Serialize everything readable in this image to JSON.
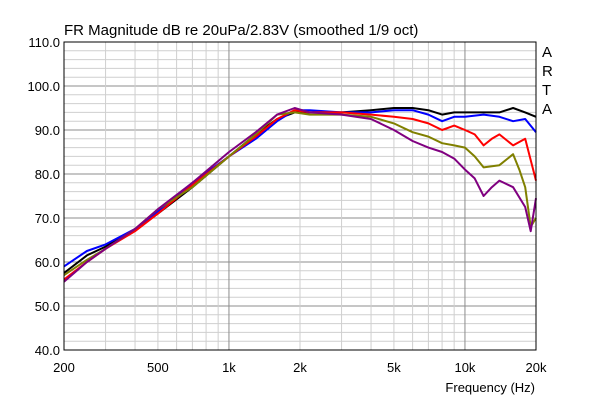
{
  "chart_data": {
    "type": "line",
    "title": "FR Magnitude dB re 20uPa/2.83V (smoothed 1/9 oct)",
    "xlabel": "Frequency (Hz)",
    "ylabel": "",
    "x_scale": "log",
    "xlim": [
      200,
      20000
    ],
    "ylim": [
      40,
      110
    ],
    "x_ticks": [
      200,
      500,
      1000,
      2000,
      5000,
      10000,
      20000
    ],
    "x_tick_labels": [
      "200",
      "500",
      "1k",
      "2k",
      "5k",
      "10k",
      "20k"
    ],
    "y_ticks": [
      40,
      50,
      60,
      70,
      80,
      90,
      100,
      110
    ],
    "y_tick_labels": [
      "40.0",
      "50.0",
      "60.0",
      "70.0",
      "80.0",
      "90.0",
      "100.0",
      "110.0"
    ],
    "grid": true,
    "watermark": "ARTA",
    "series": [
      {
        "color": "#000000",
        "x": [
          200,
          250,
          300,
          400,
          500,
          700,
          1000,
          1300,
          1600,
          1900,
          2200,
          3000,
          4000,
          5000,
          6000,
          7000,
          8000,
          9000,
          10000,
          12000,
          14000,
          16000,
          18000,
          20000
        ],
        "y": [
          57.5,
          61.5,
          63.5,
          67.5,
          71,
          77,
          84,
          89,
          92.5,
          94,
          94,
          94,
          94.5,
          95,
          95,
          94.5,
          93.5,
          94,
          94,
          94,
          94,
          95,
          94,
          93
        ]
      },
      {
        "color": "#0000ff",
        "x": [
          200,
          250,
          300,
          400,
          500,
          700,
          1000,
          1300,
          1600,
          1900,
          2200,
          3000,
          4000,
          5000,
          6000,
          7000,
          8000,
          9000,
          10000,
          12000,
          14000,
          16000,
          18000,
          20000
        ],
        "y": [
          59,
          62.5,
          64,
          67.5,
          71.5,
          78,
          84,
          88,
          92,
          94.5,
          94.5,
          94,
          94,
          94.5,
          94.5,
          93.5,
          92,
          93,
          93,
          93.5,
          93,
          92,
          92.5,
          89.5
        ]
      },
      {
        "color": "#ff0000",
        "x": [
          200,
          250,
          300,
          400,
          500,
          700,
          1000,
          1300,
          1600,
          1900,
          2200,
          3000,
          4000,
          5000,
          6000,
          7000,
          8000,
          9000,
          10000,
          11000,
          12000,
          13000,
          14000,
          16000,
          18000,
          20000
        ],
        "y": [
          56,
          60,
          63,
          67,
          71,
          77.5,
          84,
          88.5,
          92.5,
          94.5,
          94,
          94,
          93.5,
          93,
          92.5,
          91.5,
          90,
          91,
          90,
          89,
          86.5,
          88,
          89,
          86.5,
          88,
          78.5
        ]
      },
      {
        "color": "#808000",
        "x": [
          200,
          250,
          300,
          400,
          500,
          700,
          1000,
          1300,
          1600,
          1900,
          2200,
          3000,
          4000,
          5000,
          6000,
          7000,
          8000,
          9000,
          10000,
          11000,
          12000,
          14000,
          16000,
          17000,
          18000,
          19000,
          20000
        ],
        "y": [
          57,
          60.5,
          63,
          67.5,
          72,
          77,
          84,
          89,
          93.5,
          94,
          93.5,
          93.5,
          93,
          91.5,
          89.5,
          88.5,
          87,
          86.5,
          86,
          84,
          81.5,
          82,
          84.5,
          81,
          77,
          68,
          70
        ]
      },
      {
        "color": "#800080",
        "x": [
          200,
          250,
          300,
          400,
          500,
          700,
          1000,
          1300,
          1600,
          1900,
          2200,
          3000,
          4000,
          5000,
          6000,
          7000,
          8000,
          9000,
          10000,
          11000,
          12000,
          13000,
          14000,
          16000,
          18000,
          19000,
          20000
        ],
        "y": [
          55.5,
          60,
          63,
          67.5,
          72,
          78,
          85,
          89.5,
          93.5,
          95,
          94,
          93.5,
          92.5,
          90,
          87.5,
          86,
          85,
          83.5,
          81,
          79,
          75,
          77,
          78.5,
          77,
          72.5,
          67,
          74.5
        ]
      }
    ]
  }
}
